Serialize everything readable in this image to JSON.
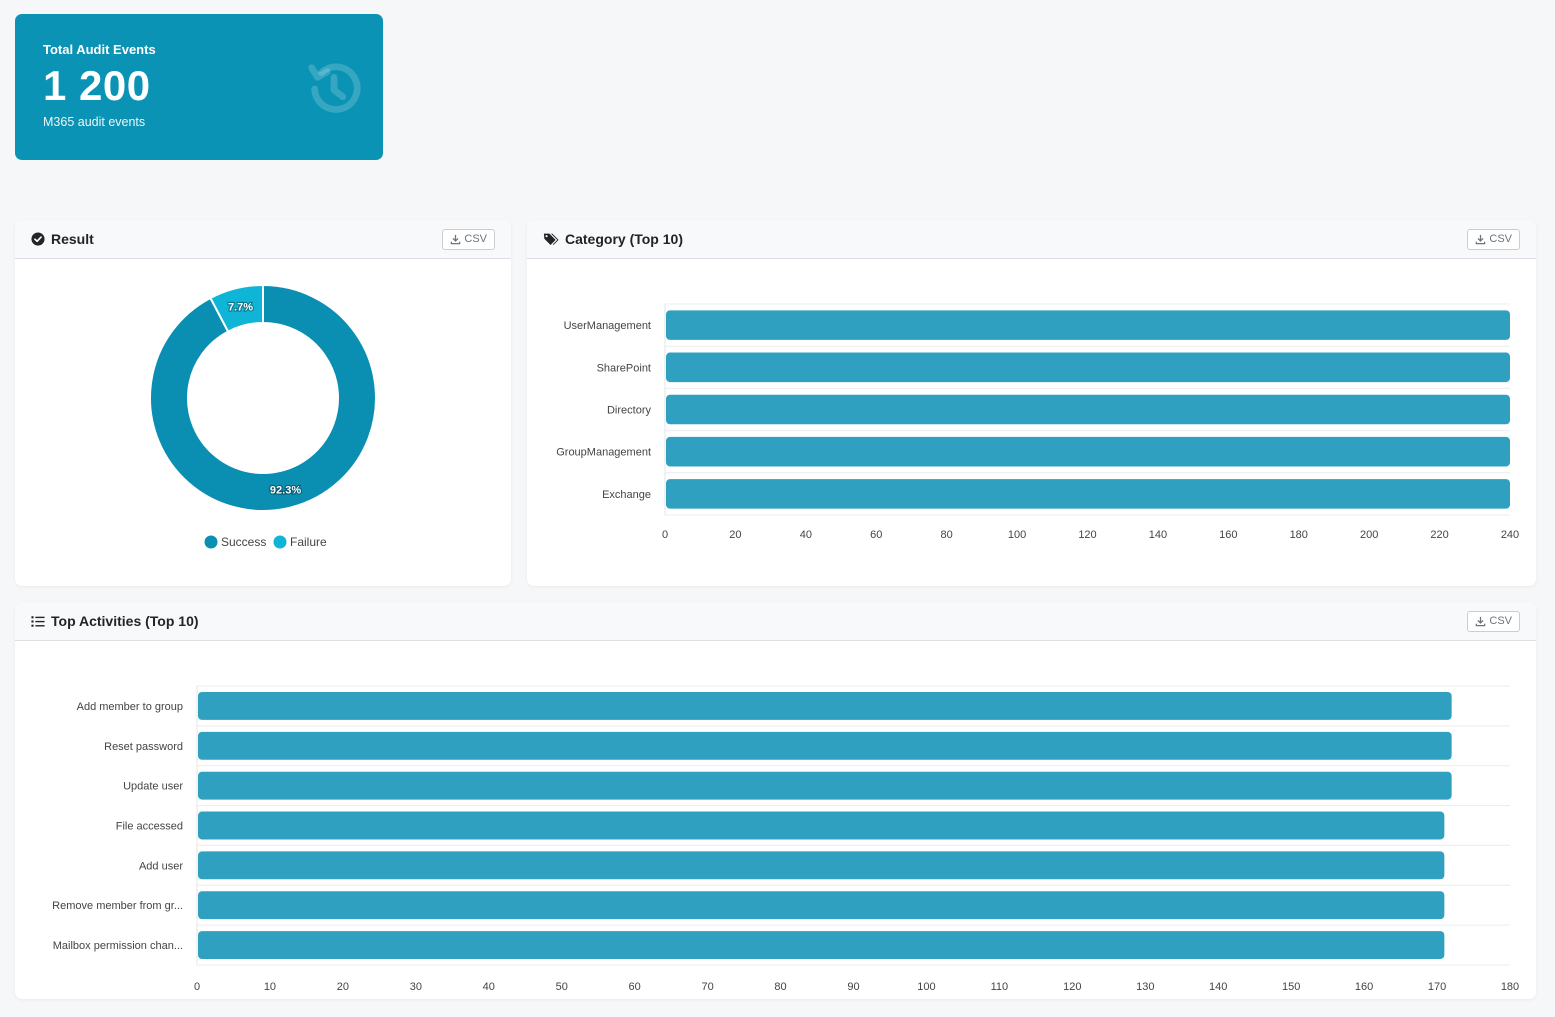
{
  "stat": {
    "title": "Total Audit Events",
    "value": "1 200",
    "subtitle": "M365 audit events",
    "icon": "history-icon",
    "color": "#0a93b4"
  },
  "csv_label": "CSV",
  "panels": {
    "result": {
      "title": "Result",
      "icon": "check-circle-icon"
    },
    "category": {
      "title": "Category (Top 10)",
      "icon": "tags-icon"
    },
    "activities": {
      "title": "Top Activities (Top 10)",
      "icon": "list-icon"
    }
  },
  "chart_data": [
    {
      "type": "pie",
      "variant": "donut",
      "labels": [
        "Success",
        "Failure"
      ],
      "values": [
        92.3,
        7.7
      ],
      "data_labels": [
        "92.3%",
        "7.7%"
      ],
      "colors": [
        "#0a8fb3",
        "#0fb5d6"
      ],
      "legend": "bottom"
    },
    {
      "type": "bar",
      "orientation": "horizontal",
      "categories": [
        "UserManagement",
        "SharePoint",
        "Directory",
        "GroupManagement",
        "Exchange"
      ],
      "values": [
        240,
        240,
        240,
        240,
        240
      ],
      "xlim": [
        0,
        240
      ],
      "xticks": [
        0,
        20,
        40,
        60,
        80,
        100,
        120,
        140,
        160,
        180,
        200,
        220,
        240
      ],
      "color": "#2fa0bf",
      "grid": true
    },
    {
      "type": "bar",
      "orientation": "horizontal",
      "categories": [
        "Add member to group",
        "Reset password",
        "Update user",
        "File accessed",
        "Add user",
        "Remove member from gr...",
        "Mailbox permission chan..."
      ],
      "values": [
        172,
        172,
        172,
        171,
        171,
        171,
        171
      ],
      "xlim": [
        0,
        180
      ],
      "xticks": [
        0,
        10,
        20,
        30,
        40,
        50,
        60,
        70,
        80,
        90,
        100,
        110,
        120,
        130,
        140,
        150,
        160,
        170,
        180
      ],
      "color": "#2fa0bf",
      "grid": true
    }
  ]
}
